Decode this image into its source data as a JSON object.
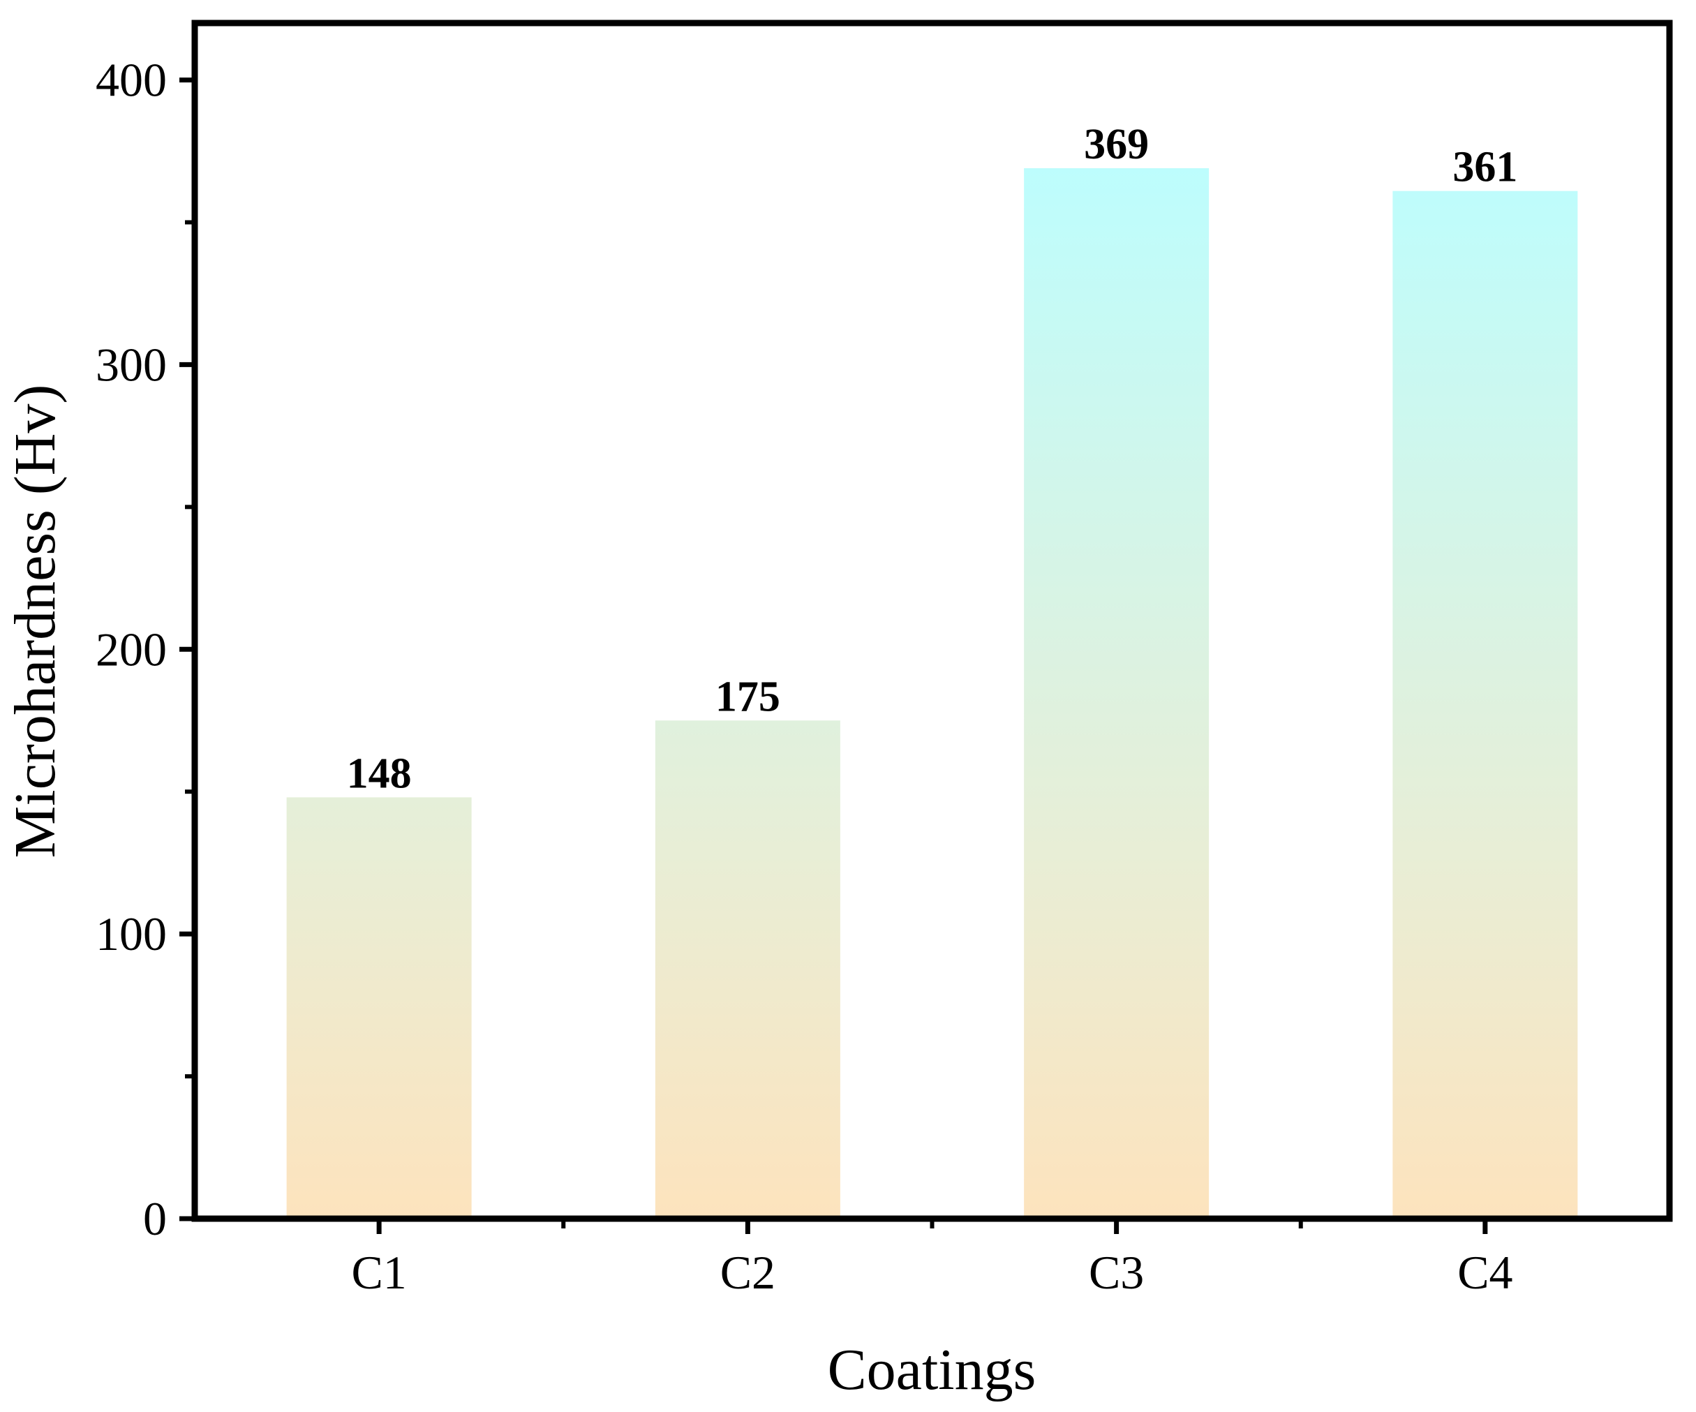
{
  "chart_data": {
    "type": "bar",
    "title": "",
    "xlabel": "Coatings",
    "ylabel": "Microhardness (Hv)",
    "categories": [
      "C1",
      "C2",
      "C3",
      "C4"
    ],
    "values": [
      148,
      175,
      369,
      361
    ],
    "data_labels": [
      "148",
      "175",
      "369",
      "361"
    ],
    "ylim": [
      0,
      420
    ],
    "yticks": [
      0,
      100,
      200,
      300,
      400
    ],
    "grid": false,
    "legend": "none",
    "bar_gradient": {
      "top": "#bdfdfd",
      "bottom": "#fde3bd"
    }
  }
}
